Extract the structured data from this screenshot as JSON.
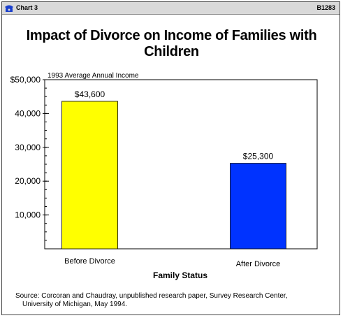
{
  "window": {
    "title_left": "Chart 3",
    "title_right": "B1283",
    "icon": "phone-icon"
  },
  "chart_data": {
    "type": "bar",
    "title": "Impact of Divorce on Income of Families with Children",
    "subtitle": "1993 Average Annual Income",
    "xlabel": "Family Status",
    "ylabel": "",
    "categories": [
      "Before Divorce",
      "After Divorce"
    ],
    "values": [
      43600,
      25300
    ],
    "data_labels": [
      "$43,600",
      "$25,300"
    ],
    "colors": [
      "#ffff00",
      "#0033ff"
    ],
    "ylim": [
      0,
      50000
    ],
    "yticks": [
      10000,
      20000,
      30000,
      40000,
      50000
    ],
    "ytick_labels": [
      "10,000",
      "20,000",
      "30,000",
      "40,000",
      "$50,000"
    ],
    "grid": false,
    "legend": "none"
  },
  "source": {
    "line1": "Source: Corcoran and Chaudray, unpublished research paper, Survey Research Center,",
    "line2": "University of Michigan, May 1994."
  }
}
